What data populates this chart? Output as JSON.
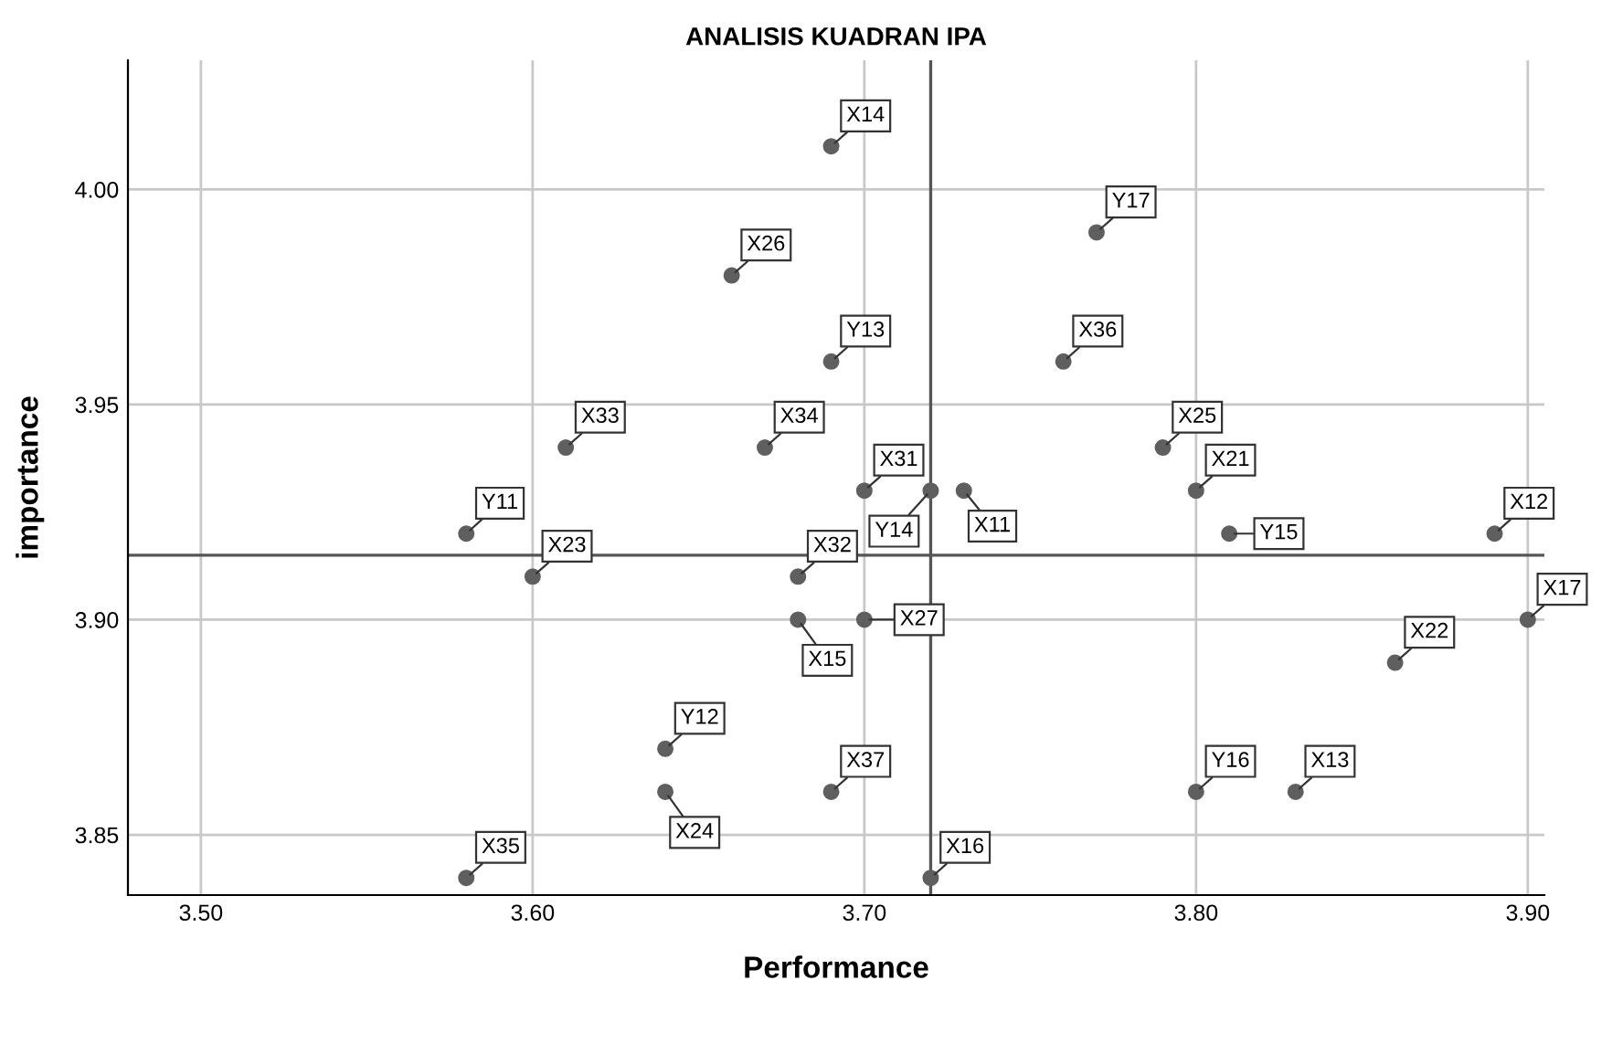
{
  "chart_data": {
    "type": "scatter",
    "title": "ANALISIS KUADRAN IPA",
    "xlabel": "Performance",
    "ylabel": "importance",
    "x": [
      3.69,
      3.77,
      3.66,
      3.69,
      3.76,
      3.61,
      3.67,
      3.79,
      3.7,
      3.72,
      3.73,
      3.8,
      3.58,
      3.81,
      3.89,
      3.6,
      3.68,
      3.68,
      3.7,
      3.9,
      3.86,
      3.64,
      3.64,
      3.69,
      3.8,
      3.83,
      3.58,
      3.72
    ],
    "values": [
      4.01,
      3.99,
      3.98,
      3.96,
      3.96,
      3.94,
      3.94,
      3.94,
      3.93,
      3.93,
      3.93,
      3.93,
      3.92,
      3.92,
      3.92,
      3.91,
      3.91,
      3.9,
      3.9,
      3.9,
      3.89,
      3.87,
      3.86,
      3.86,
      3.86,
      3.86,
      3.84,
      3.84
    ],
    "annotations": [
      {
        "text": "X14",
        "x": 3.69,
        "y": 4.01
      },
      {
        "text": "Y17",
        "x": 3.77,
        "y": 3.99
      },
      {
        "text": "X26",
        "x": 3.66,
        "y": 3.98
      },
      {
        "text": "Y13",
        "x": 3.69,
        "y": 3.96
      },
      {
        "text": "X36",
        "x": 3.76,
        "y": 3.96
      },
      {
        "text": "X33",
        "x": 3.61,
        "y": 3.94
      },
      {
        "text": "X34",
        "x": 3.67,
        "y": 3.94
      },
      {
        "text": "X25",
        "x": 3.79,
        "y": 3.94
      },
      {
        "text": "X31",
        "x": 3.7,
        "y": 3.93
      },
      {
        "text": "Y14",
        "x": 3.72,
        "y": 3.93
      },
      {
        "text": "X11",
        "x": 3.73,
        "y": 3.93
      },
      {
        "text": "X21",
        "x": 3.8,
        "y": 3.93
      },
      {
        "text": "Y11",
        "x": 3.58,
        "y": 3.92
      },
      {
        "text": "Y15",
        "x": 3.81,
        "y": 3.92
      },
      {
        "text": "X12",
        "x": 3.89,
        "y": 3.92
      },
      {
        "text": "X23",
        "x": 3.6,
        "y": 3.91
      },
      {
        "text": "X32",
        "x": 3.68,
        "y": 3.91
      },
      {
        "text": "X15",
        "x": 3.68,
        "y": 3.9
      },
      {
        "text": "X27",
        "x": 3.7,
        "y": 3.9
      },
      {
        "text": "X17",
        "x": 3.9,
        "y": 3.9
      },
      {
        "text": "X22",
        "x": 3.86,
        "y": 3.89
      },
      {
        "text": "Y12",
        "x": 3.64,
        "y": 3.87
      },
      {
        "text": "X24",
        "x": 3.64,
        "y": 3.86
      },
      {
        "text": "X37",
        "x": 3.69,
        "y": 3.86
      },
      {
        "text": "Y16",
        "x": 3.8,
        "y": 3.86
      },
      {
        "text": "X13",
        "x": 3.83,
        "y": 3.86
      },
      {
        "text": "X35",
        "x": 3.58,
        "y": 3.84
      },
      {
        "text": "X16",
        "x": 3.72,
        "y": 3.84
      }
    ],
    "color": "#5f5f5f",
    "marker": "circle",
    "grid": true,
    "xlim": [
      3.478,
      3.905
    ],
    "ylim": [
      3.836,
      4.03
    ],
    "xticks": [
      {
        "value": 3.5,
        "label": "3.50"
      },
      {
        "value": 3.6,
        "label": "3.60"
      },
      {
        "value": 3.7,
        "label": "3.70"
      },
      {
        "value": 3.8,
        "label": "3.80"
      },
      {
        "value": 3.9,
        "label": "3.90"
      }
    ],
    "yticks": [
      {
        "value": 3.85,
        "label": "3.85"
      },
      {
        "value": 3.9,
        "label": "3.90"
      },
      {
        "value": 3.95,
        "label": "3.95"
      },
      {
        "value": 4.0,
        "label": "4.00"
      }
    ],
    "ref_lines": [
      {
        "axis": "x",
        "value": 3.72,
        "label": null,
        "color": "#555555"
      },
      {
        "axis": "y",
        "value": 3.915,
        "label": null,
        "color": "#555555"
      }
    ]
  }
}
